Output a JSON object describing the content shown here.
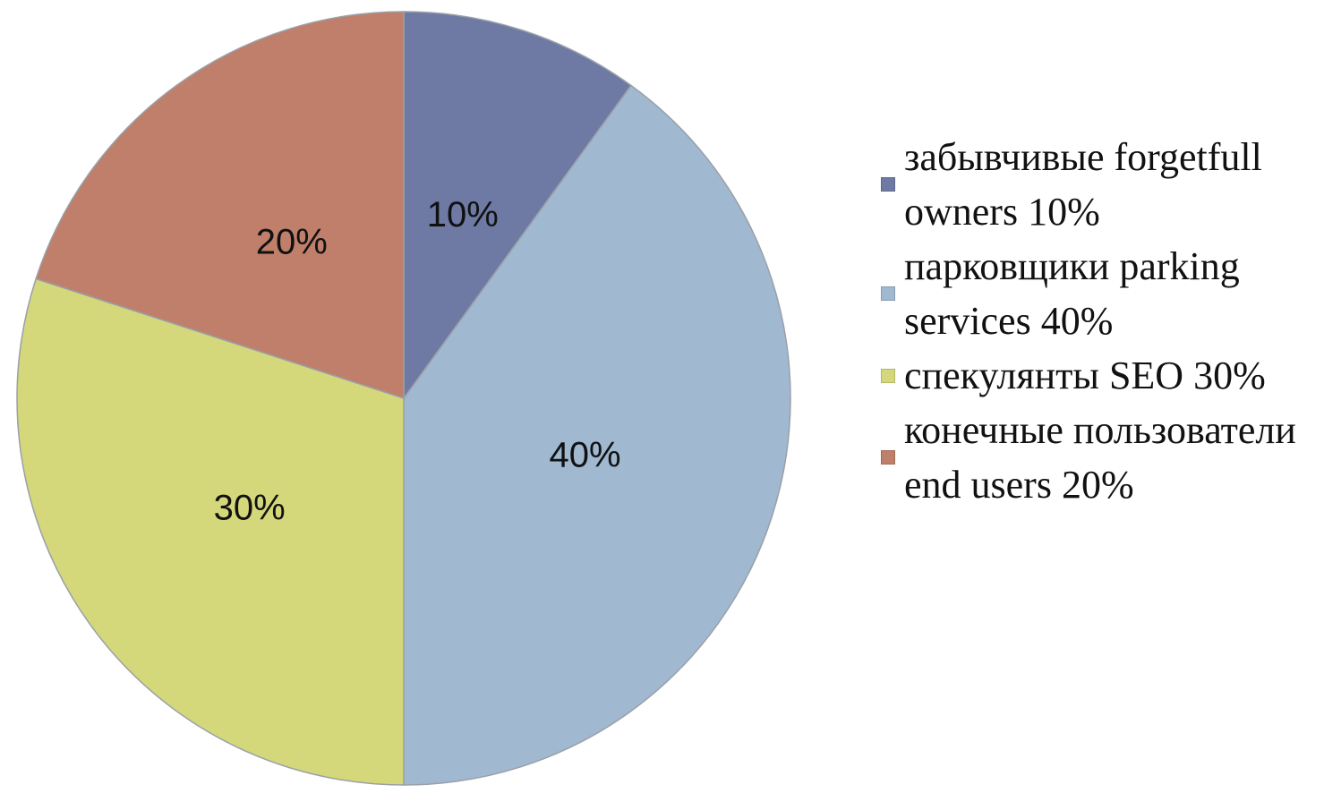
{
  "chart_data": {
    "type": "pie",
    "categories": [
      "забывчивые forgetfull owners 10%",
      "парковщики parking services 40%",
      "спекулянты SEO 30%",
      "конечные пользователи end users 20%"
    ],
    "values": [
      10,
      40,
      30,
      20
    ],
    "value_labels": [
      "10%",
      "40%",
      "30%",
      "20%"
    ],
    "colors": [
      "#6e7aa4",
      "#a0b8d0",
      "#d4d87a",
      "#bf7f6a"
    ],
    "legend": "right"
  }
}
